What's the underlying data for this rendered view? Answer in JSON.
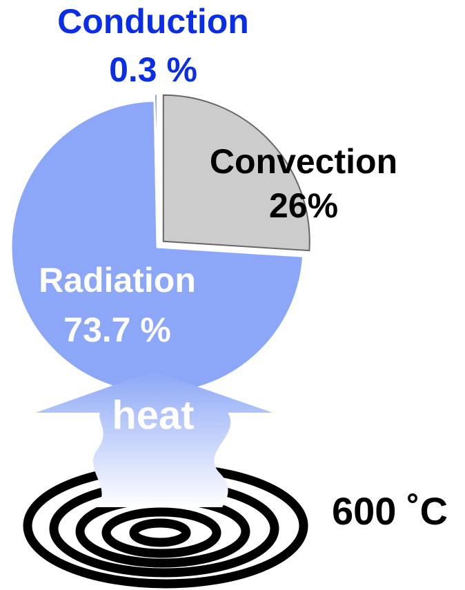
{
  "chart_data": {
    "type": "pie",
    "categories": [
      "Convection",
      "Radiation",
      "Conduction"
    ],
    "values": [
      26,
      73.7,
      0.3
    ],
    "value_labels": [
      "26%",
      "73.7 %",
      "0.3 %"
    ],
    "colors": [
      "#cccccc",
      "#8ca7f7",
      "#0b33f0"
    ]
  },
  "annotations": {
    "arrow_label": "heat",
    "temperature": "600 ˚C"
  }
}
